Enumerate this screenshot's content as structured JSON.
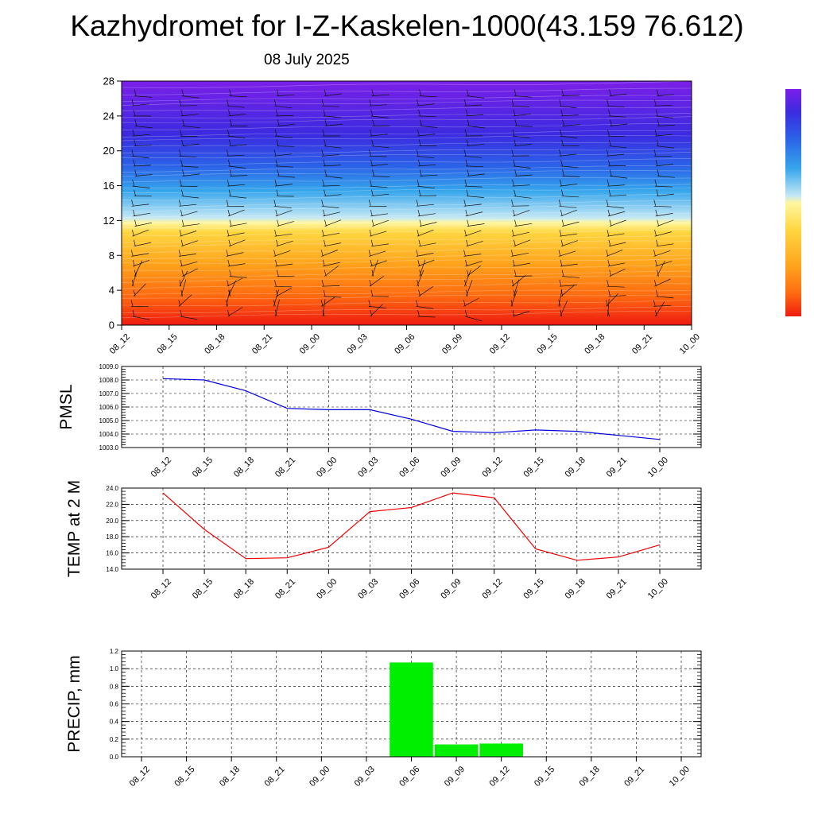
{
  "header": {
    "title": "Kazhydromet for I-Z-Kaskelen-1000(43.159 76.612)",
    "date": "08 July 2025"
  },
  "time_labels": [
    "08_12",
    "08_15",
    "08_18",
    "08_21",
    "09_00",
    "09_03",
    "09_06",
    "09_09",
    "09_12",
    "09_15",
    "09_18",
    "09_21",
    "10_00"
  ],
  "chart_data": [
    {
      "type": "heatmap",
      "title": "",
      "xlabel": "",
      "ylabel": "",
      "x": [
        "08_12",
        "08_15",
        "08_18",
        "08_21",
        "09_00",
        "09_03",
        "09_06",
        "09_09",
        "09_12",
        "09_15",
        "09_18",
        "09_21",
        "10_00"
      ],
      "yticks": [
        0,
        4,
        8,
        12,
        16,
        20,
        24,
        28
      ],
      "ylim": [
        0,
        28
      ],
      "colormap": [
        "#7b1fe8",
        "#3b2be0",
        "#2b63e8",
        "#36a6ec",
        "#c5e8f5",
        "#fff6a0",
        "#ffd640",
        "#ffa31c",
        "#ff6a10",
        "#ee1a10"
      ],
      "legend": "colorbar right, unlabeled",
      "overlay": "wind barbs"
    },
    {
      "type": "line",
      "ylabel": "PMSL",
      "ylim": [
        1003.0,
        1009.0
      ],
      "yticks": [
        "1003.0",
        "1004.0",
        "1005.0",
        "1006.0",
        "1007.0",
        "1008.0",
        "1009.0"
      ],
      "color": "#0000dd",
      "x": [
        "08_12",
        "08_15",
        "08_18",
        "08_21",
        "09_00",
        "09_03",
        "09_06",
        "09_09",
        "09_12",
        "09_15",
        "09_18",
        "09_21",
        "10_00"
      ],
      "values": [
        1008.1,
        1008.0,
        1007.2,
        1005.9,
        1005.8,
        1005.8,
        1005.1,
        1004.2,
        1004.1,
        1004.3,
        1004.2,
        1003.9,
        1003.6
      ],
      "grid": true
    },
    {
      "type": "line",
      "ylabel": "TEMP at 2 M",
      "ylim": [
        14.0,
        24.0
      ],
      "yticks": [
        "14.0",
        "16.0",
        "18.0",
        "20.0",
        "22.0",
        "24.0"
      ],
      "color": "#ee0000",
      "x": [
        "08_12",
        "08_15",
        "08_18",
        "08_21",
        "09_00",
        "09_03",
        "09_06",
        "09_09",
        "09_12",
        "09_15",
        "09_18",
        "09_21",
        "10_00"
      ],
      "values": [
        23.4,
        18.9,
        15.3,
        15.4,
        16.7,
        21.1,
        21.6,
        23.4,
        22.8,
        16.5,
        15.1,
        15.5,
        17.0
      ],
      "grid": true
    },
    {
      "type": "bar",
      "ylabel": "PRECIP, mm",
      "ylim": [
        0.0,
        1.2
      ],
      "yticks": [
        "0.0",
        "0.2",
        "0.4",
        "0.6",
        "0.8",
        "1.0",
        "1.2"
      ],
      "color": "#00ee00",
      "categories": [
        "08_12",
        "08_15",
        "08_18",
        "08_21",
        "09_00",
        "09_03",
        "09_06",
        "09_09",
        "09_12",
        "09_15",
        "09_18",
        "09_21",
        "10_00"
      ],
      "values": [
        0,
        0,
        0,
        0,
        0,
        0,
        1.07,
        0.14,
        0.15,
        0,
        0,
        0,
        0
      ],
      "grid": true
    }
  ]
}
